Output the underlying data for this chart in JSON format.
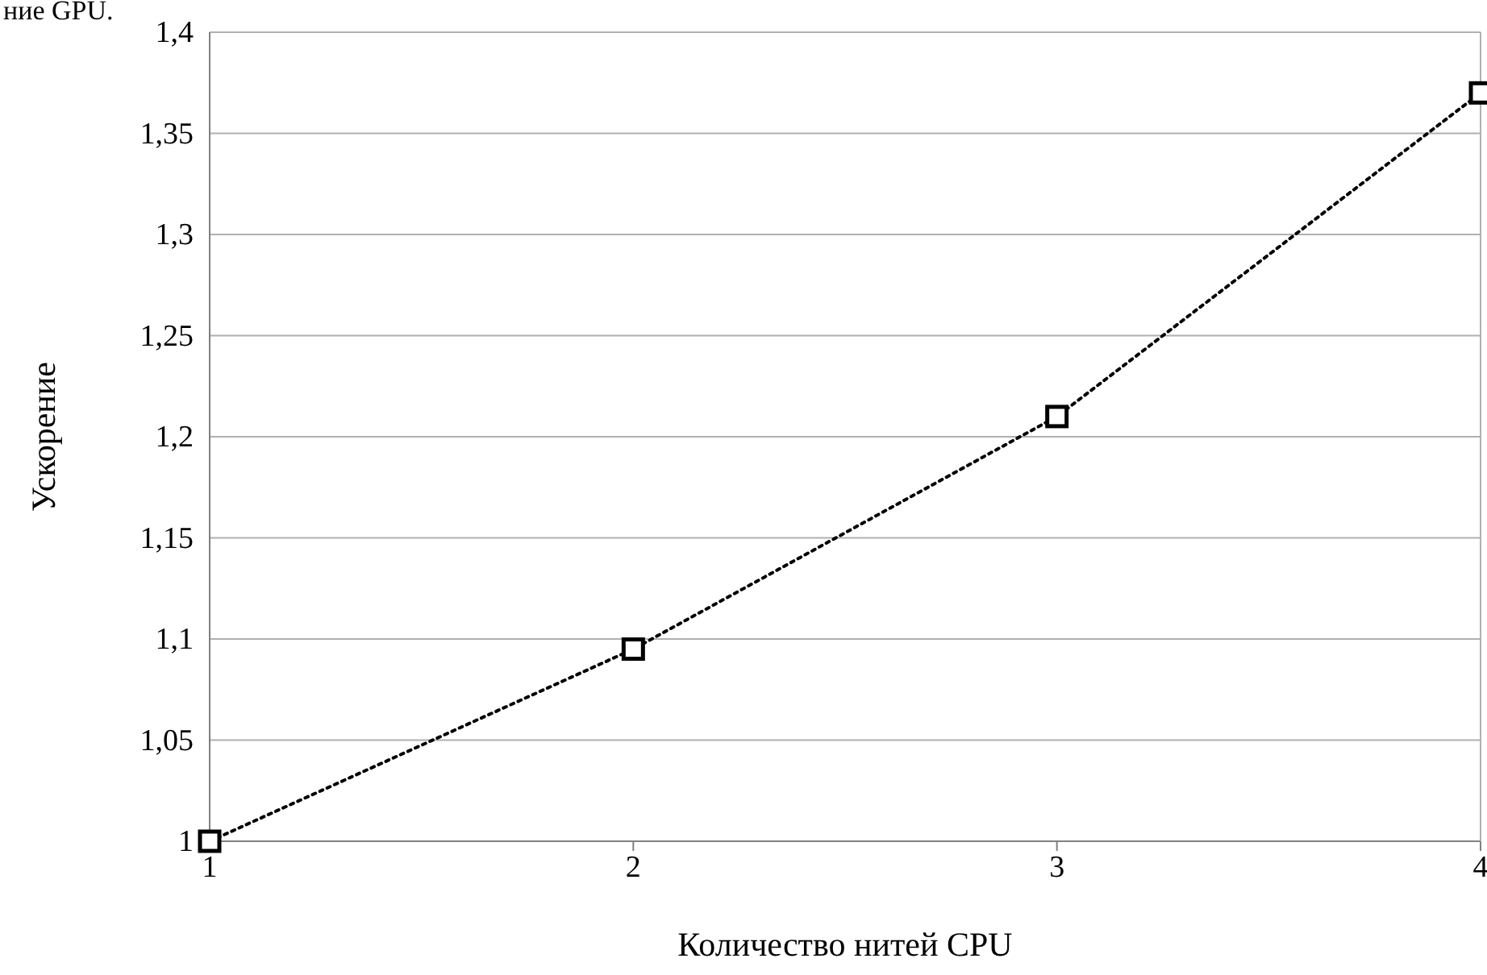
{
  "chart_data": {
    "type": "line",
    "xlabel": "Количество нитей CPU",
    "ylabel": "Ускорение",
    "annotations": [
      "ние GPU."
    ],
    "x": [
      1,
      2,
      3,
      4
    ],
    "series": [
      {
        "color": "#000000",
        "values": [
          1,
          1.095,
          1.21,
          1.37
        ]
      }
    ],
    "xlim": [
      1,
      4
    ],
    "xticks": [
      1,
      2,
      3,
      4
    ],
    "ylim": [
      1,
      1.4
    ],
    "yticks": [
      1,
      {
        "value": 1.05,
        "label": "1,05"
      },
      {
        "value": 1.1,
        "label": "1,1"
      },
      {
        "value": 1.15,
        "label": "1,15"
      },
      {
        "value": 1.2,
        "label": "1,2"
      },
      {
        "value": 1.25,
        "label": "1,25"
      },
      {
        "value": 1.3,
        "label": "1,3"
      },
      {
        "value": 1.35,
        "label": "1,35"
      },
      {
        "value": 1.4,
        "label": "1,4"
      }
    ],
    "grid": "y",
    "marker": "square",
    "line_style": "dotted"
  }
}
